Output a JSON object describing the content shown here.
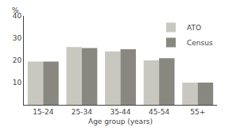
{
  "chart_data": {
    "type": "bar",
    "categories": [
      "15-24",
      "25-34",
      "35-44",
      "45-54",
      "55+"
    ],
    "series": [
      {
        "name": "ATO",
        "color": "#c8c8c0",
        "values": [
          19.5,
          26.0,
          24.0,
          20.0,
          10.0
        ]
      },
      {
        "name": "Census",
        "color": "#888880",
        "values": [
          19.5,
          25.5,
          25.0,
          21.0,
          10.0
        ]
      }
    ],
    "xlabel": "Age group (years)",
    "ylabel": "%",
    "ylim": [
      0,
      40
    ],
    "yticks": [
      10,
      20,
      30,
      40
    ],
    "grid": false,
    "legend": "upper right"
  }
}
